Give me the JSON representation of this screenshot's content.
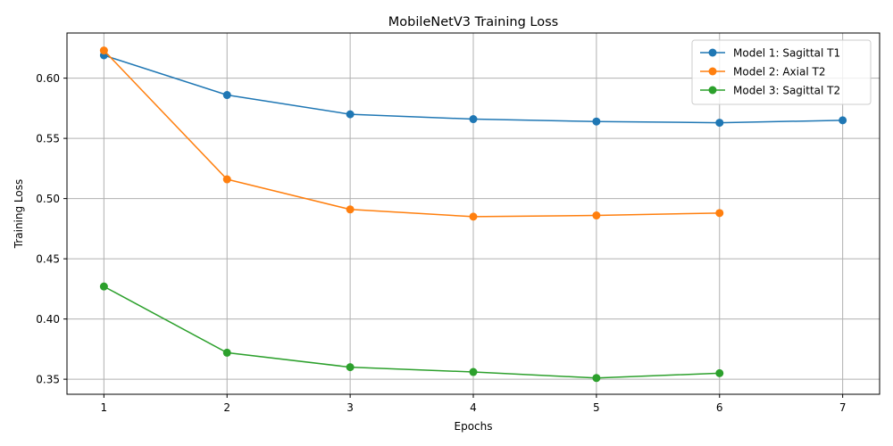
{
  "chart_data": {
    "type": "line",
    "title": "MobileNetV3 Training Loss",
    "xlabel": "Epochs",
    "ylabel": "Training Loss",
    "xlim": [
      0.7,
      7.3
    ],
    "ylim": [
      0.3375,
      0.6375
    ],
    "xticks": [
      1,
      2,
      3,
      4,
      5,
      6,
      7
    ],
    "yticks": [
      0.35,
      0.4,
      0.45,
      0.5,
      0.55,
      0.6
    ],
    "ytick_labels": [
      "0.35",
      "0.40",
      "0.45",
      "0.50",
      "0.55",
      "0.60"
    ],
    "grid": true,
    "legend_position": "top-right",
    "series": [
      {
        "name": "Model 1: Sagittal T1",
        "color": "#1f77b4",
        "marker": "circle",
        "x": [
          1,
          2,
          3,
          4,
          5,
          6,
          7
        ],
        "values": [
          0.619,
          0.586,
          0.57,
          0.566,
          0.564,
          0.563,
          0.565
        ]
      },
      {
        "name": "Model 2: Axial T2",
        "color": "#ff7f0e",
        "marker": "circle",
        "x": [
          1,
          2,
          3,
          4,
          5,
          6
        ],
        "values": [
          0.623,
          0.516,
          0.491,
          0.485,
          0.486,
          0.488
        ]
      },
      {
        "name": "Model 3: Sagittal T2",
        "color": "#2ca02c",
        "marker": "circle",
        "x": [
          1,
          2,
          3,
          4,
          5,
          6
        ],
        "values": [
          0.427,
          0.372,
          0.36,
          0.356,
          0.351,
          0.355
        ]
      }
    ]
  }
}
